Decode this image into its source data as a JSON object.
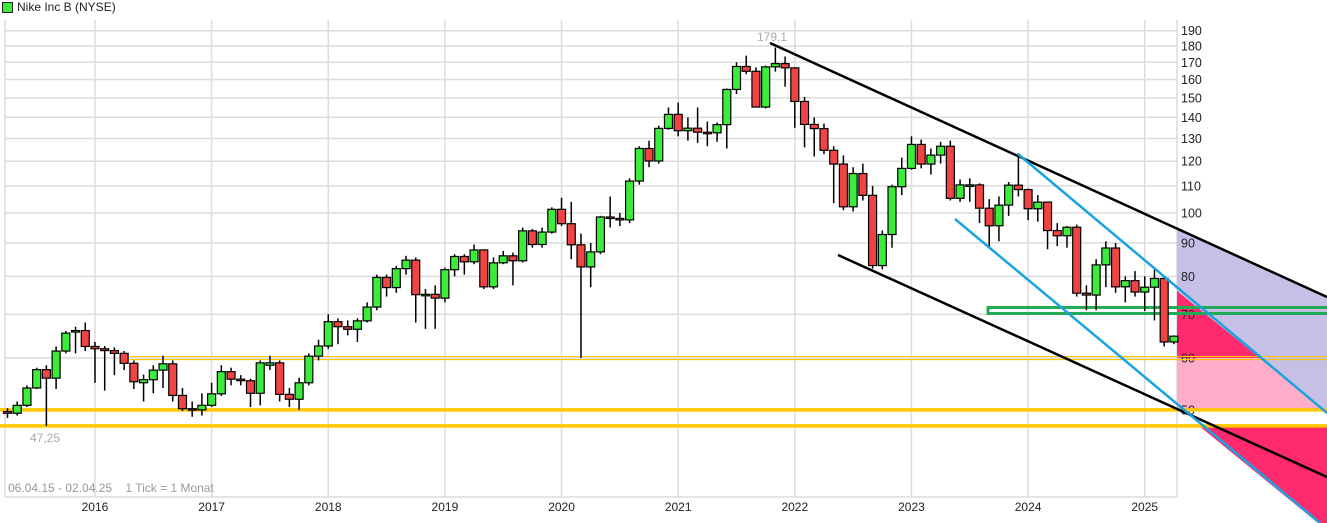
{
  "header": {
    "title": "Nike Inc B (NYSE)",
    "legend_color": "#3bec3b"
  },
  "footer": {
    "range": "06.04.15 - 02.04.25",
    "tick": "1 Tick = 1 Monat"
  },
  "chart_data": {
    "type": "candlestick",
    "title": "Nike Inc B (NYSE)",
    "interval": "1 month",
    "y_scale": "log",
    "ylim": [
      45,
      195
    ],
    "y_ticks": [
      190,
      180,
      170,
      160,
      150,
      140,
      130,
      120,
      110,
      100,
      90,
      80,
      70,
      60,
      50
    ],
    "x_ticks": [
      "2016",
      "2017",
      "2018",
      "2019",
      "2020",
      "2021",
      "2022",
      "2023",
      "2024",
      "2025"
    ],
    "grid": true,
    "annotations": {
      "high_label": "179,1",
      "low_label": "47,25"
    },
    "levels": {
      "yellow_lines": [
        60,
        50,
        47.25
      ],
      "green_band": [
        70.2,
        71.7
      ]
    },
    "colors": {
      "up": "#3bec3b",
      "down": "#f04444",
      "yellow": "#ffc800",
      "green_band": "#22aa55",
      "trend_black": "#000000",
      "trend_blue": "#1aa3e0",
      "zone_lavender": "#c6c0e6",
      "zone_hotpink": "#ff2a6d",
      "zone_lightpink": "#ffadc8"
    },
    "columns": [
      "month",
      "open",
      "high",
      "low",
      "close"
    ],
    "candles": [
      [
        "2015-04",
        49.7,
        50.3,
        48.6,
        49.4
      ],
      [
        "2015-05",
        49.4,
        51.5,
        49.0,
        50.8
      ],
      [
        "2015-06",
        50.8,
        54.5,
        50.5,
        54.0
      ],
      [
        "2015-07",
        54.0,
        58.0,
        53.8,
        57.6
      ],
      [
        "2015-08",
        57.6,
        58.5,
        47.25,
        55.9
      ],
      [
        "2015-09",
        55.9,
        62.5,
        53.8,
        61.5
      ],
      [
        "2015-10",
        61.5,
        66.0,
        61.0,
        65.5
      ],
      [
        "2015-11",
        66.0,
        67.0,
        61.0,
        66.1
      ],
      [
        "2015-12",
        66.1,
        68.0,
        61.5,
        62.5
      ],
      [
        "2016-01",
        62.5,
        63.5,
        55.0,
        62.0
      ],
      [
        "2016-02",
        62.0,
        62.6,
        53.5,
        61.6
      ],
      [
        "2016-03",
        61.6,
        62.3,
        56.5,
        61.0
      ],
      [
        "2016-04",
        61.0,
        61.5,
        57.5,
        58.9
      ],
      [
        "2016-05",
        58.9,
        59.5,
        53.8,
        55.2
      ],
      [
        "2016-06",
        55.0,
        56.6,
        51.5,
        55.6
      ],
      [
        "2016-07",
        55.6,
        58.5,
        53.0,
        57.5
      ],
      [
        "2016-08",
        57.5,
        60.5,
        54.0,
        58.8
      ],
      [
        "2016-09",
        58.8,
        59.5,
        51.5,
        52.6
      ],
      [
        "2016-10",
        52.6,
        54.0,
        49.8,
        50.2
      ],
      [
        "2016-11",
        50.2,
        51.5,
        48.8,
        50.0
      ],
      [
        "2016-12",
        50.0,
        53.0,
        49.0,
        50.8
      ],
      [
        "2017-01",
        50.8,
        55.0,
        50.5,
        52.9
      ],
      [
        "2017-02",
        52.9,
        58.5,
        52.5,
        57.2
      ],
      [
        "2017-03",
        57.2,
        58.0,
        54.5,
        55.7
      ],
      [
        "2017-04",
        55.7,
        56.5,
        54.5,
        55.4
      ],
      [
        "2017-05",
        55.4,
        55.8,
        50.5,
        53.0
      ],
      [
        "2017-06",
        53.0,
        59.5,
        50.8,
        59.0
      ],
      [
        "2017-07",
        58.5,
        60.5,
        57.5,
        59.0
      ],
      [
        "2017-08",
        59.0,
        59.5,
        51.5,
        52.8
      ],
      [
        "2017-09",
        52.8,
        54.0,
        50.5,
        51.9
      ],
      [
        "2017-10",
        51.9,
        56.0,
        50.0,
        55.0
      ],
      [
        "2017-11",
        55.0,
        61.0,
        54.5,
        60.4
      ],
      [
        "2017-12",
        60.4,
        64.0,
        59.5,
        62.6
      ],
      [
        "2018-01",
        62.6,
        70.0,
        62.0,
        68.2
      ],
      [
        "2018-02",
        68.2,
        69.0,
        63.0,
        67.0
      ],
      [
        "2018-03",
        67.0,
        68.5,
        65.0,
        66.4
      ],
      [
        "2018-04",
        66.4,
        69.0,
        63.5,
        68.4
      ],
      [
        "2018-05",
        68.4,
        73.0,
        68.0,
        71.8
      ],
      [
        "2018-06",
        71.8,
        80.5,
        71.0,
        79.7
      ],
      [
        "2018-07",
        79.7,
        80.5,
        74.5,
        76.9
      ],
      [
        "2018-08",
        76.9,
        83.0,
        75.5,
        82.2
      ],
      [
        "2018-09",
        82.2,
        86.0,
        80.5,
        84.7
      ],
      [
        "2018-10",
        84.7,
        85.5,
        68.0,
        75.0
      ],
      [
        "2018-11",
        75.0,
        76.5,
        66.5,
        75.1
      ],
      [
        "2018-12",
        75.1,
        77.5,
        66.5,
        74.1
      ],
      [
        "2019-01",
        74.1,
        82.5,
        73.0,
        81.9
      ],
      [
        "2019-02",
        81.9,
        86.5,
        80.0,
        85.8
      ],
      [
        "2019-03",
        85.8,
        86.5,
        80.5,
        84.2
      ],
      [
        "2019-04",
        84.2,
        89.5,
        83.5,
        87.8
      ],
      [
        "2019-05",
        87.8,
        88.0,
        76.5,
        77.1
      ],
      [
        "2019-06",
        77.1,
        85.5,
        76.5,
        83.9
      ],
      [
        "2019-07",
        83.9,
        87.5,
        83.5,
        86.0
      ],
      [
        "2019-08",
        86.0,
        87.0,
        77.5,
        84.5
      ],
      [
        "2019-09",
        84.5,
        95.0,
        84.0,
        93.9
      ],
      [
        "2019-10",
        93.9,
        94.5,
        88.5,
        89.5
      ],
      [
        "2019-11",
        89.5,
        95.0,
        88.5,
        93.5
      ],
      [
        "2019-12",
        93.5,
        102.0,
        93.0,
        101.3
      ],
      [
        "2020-01",
        101.3,
        105.5,
        95.5,
        96.3
      ],
      [
        "2020-02",
        96.3,
        104.0,
        85.0,
        89.4
      ],
      [
        "2020-03",
        89.4,
        93.0,
        60.0,
        82.7
      ],
      [
        "2020-04",
        82.7,
        90.0,
        77.0,
        87.2
      ],
      [
        "2020-05",
        87.2,
        99.0,
        86.5,
        98.6
      ],
      [
        "2020-06",
        98.6,
        106.0,
        95.0,
        98.1
      ],
      [
        "2020-07",
        98.1,
        100.0,
        95.5,
        97.6
      ],
      [
        "2020-08",
        97.6,
        113.0,
        96.5,
        111.9
      ],
      [
        "2020-09",
        111.9,
        126.5,
        110.5,
        125.5
      ],
      [
        "2020-10",
        125.5,
        129.0,
        117.5,
        120.1
      ],
      [
        "2020-11",
        120.1,
        136.0,
        119.0,
        134.7
      ],
      [
        "2020-12",
        134.7,
        145.0,
        134.0,
        141.5
      ],
      [
        "2021-01",
        141.5,
        147.5,
        131.0,
        133.6
      ],
      [
        "2021-02",
        133.6,
        140.0,
        129.0,
        134.8
      ],
      [
        "2021-03",
        134.8,
        145.0,
        128.0,
        132.9
      ],
      [
        "2021-04",
        132.9,
        138.0,
        126.5,
        132.6
      ],
      [
        "2021-05",
        132.6,
        137.5,
        128.5,
        136.5
      ],
      [
        "2021-06",
        136.5,
        155.0,
        125.5,
        154.5
      ],
      [
        "2021-07",
        154.5,
        170.0,
        152.0,
        167.5
      ],
      [
        "2021-08",
        167.5,
        174.0,
        163.0,
        164.7
      ],
      [
        "2021-09",
        164.7,
        167.0,
        145.0,
        145.2
      ],
      [
        "2021-10",
        145.2,
        168.0,
        144.5,
        167.3
      ],
      [
        "2021-11",
        167.3,
        179.1,
        164.5,
        169.2
      ],
      [
        "2021-12",
        169.2,
        173.5,
        156.0,
        166.7
      ],
      [
        "2022-01",
        166.7,
        167.0,
        135.0,
        148.1
      ],
      [
        "2022-02",
        148.1,
        150.5,
        126.0,
        136.6
      ],
      [
        "2022-03",
        136.6,
        140.0,
        122.0,
        134.6
      ],
      [
        "2022-04",
        134.6,
        137.0,
        123.0,
        124.7
      ],
      [
        "2022-05",
        124.7,
        126.5,
        103.5,
        118.8
      ],
      [
        "2022-06",
        118.8,
        122.5,
        101.0,
        102.2
      ],
      [
        "2022-07",
        102.2,
        117.5,
        100.5,
        114.9
      ],
      [
        "2022-08",
        114.9,
        119.0,
        104.5,
        106.4
      ],
      [
        "2022-09",
        106.4,
        110.0,
        82.2,
        83.1
      ],
      [
        "2022-10",
        83.1,
        94.0,
        82.0,
        92.7
      ],
      [
        "2022-11",
        92.7,
        110.5,
        88.5,
        109.7
      ],
      [
        "2022-12",
        109.7,
        121.5,
        106.5,
        117.0
      ],
      [
        "2023-01",
        117.0,
        131.0,
        116.5,
        127.3
      ],
      [
        "2023-02",
        127.3,
        129.5,
        117.0,
        118.8
      ],
      [
        "2023-03",
        118.8,
        125.5,
        114.5,
        122.6
      ],
      [
        "2023-04",
        122.6,
        128.5,
        119.0,
        126.5
      ],
      [
        "2023-05",
        126.5,
        129.0,
        104.5,
        105.3
      ],
      [
        "2023-06",
        105.3,
        112.5,
        104.0,
        110.4
      ],
      [
        "2023-07",
        110.2,
        113.0,
        104.0,
        110.4
      ],
      [
        "2023-08",
        110.4,
        111.0,
        96.5,
        101.7
      ],
      [
        "2023-09",
        101.7,
        105.0,
        88.5,
        95.6
      ],
      [
        "2023-10",
        95.6,
        106.0,
        90.5,
        102.8
      ],
      [
        "2023-11",
        102.8,
        111.5,
        99.0,
        110.3
      ],
      [
        "2023-12",
        110.3,
        123.4,
        106.0,
        108.6
      ],
      [
        "2024-01",
        108.6,
        109.0,
        97.5,
        101.5
      ],
      [
        "2024-02",
        101.5,
        106.5,
        97.0,
        103.9
      ],
      [
        "2024-03",
        103.9,
        104.0,
        88.0,
        94.0
      ],
      [
        "2024-04",
        94.0,
        96.5,
        89.0,
        92.3
      ],
      [
        "2024-05",
        92.3,
        95.5,
        88.5,
        95.1
      ],
      [
        "2024-06",
        95.1,
        96.0,
        74.5,
        75.4
      ],
      [
        "2024-07",
        75.4,
        77.5,
        71.0,
        74.9
      ],
      [
        "2024-08",
        74.9,
        85.0,
        71.0,
        83.3
      ],
      [
        "2024-09",
        83.3,
        90.5,
        77.0,
        88.4
      ],
      [
        "2024-10",
        88.4,
        90.0,
        75.5,
        77.1
      ],
      [
        "2024-11",
        77.1,
        80.0,
        73.0,
        78.8
      ],
      [
        "2024-12",
        78.8,
        81.5,
        74.5,
        75.7
      ],
      [
        "2025-01",
        75.7,
        80.0,
        70.8,
        77.0
      ],
      [
        "2025-02",
        77.0,
        82.5,
        68.5,
        79.4
      ],
      [
        "2025-03",
        79.4,
        80.0,
        62.5,
        63.5
      ],
      [
        "2025-04",
        63.5,
        65.0,
        63.0,
        64.8
      ]
    ]
  }
}
